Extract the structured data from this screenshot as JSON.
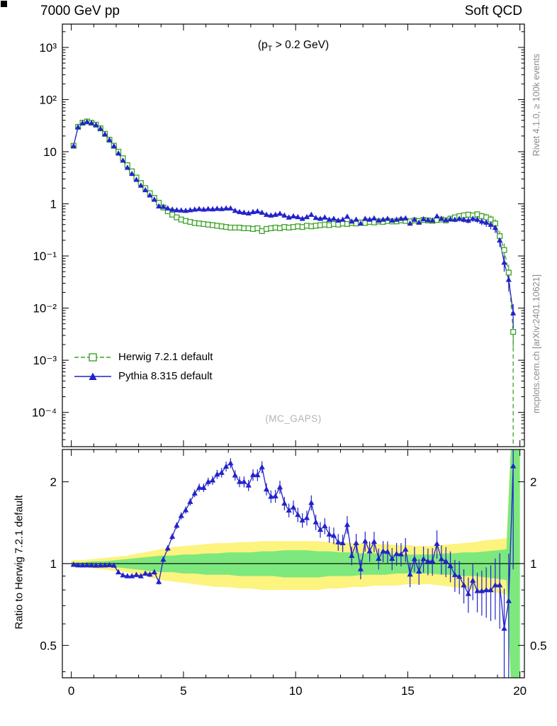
{
  "header": {
    "title_left": "7000 GeV pp",
    "title_right": "Soft QCD"
  },
  "annotation": {
    "prefix": "(p",
    "sub": "T",
    "suffix": " > 0.2 GeV)"
  },
  "watermark": "(MC_GAPS)",
  "captions": {
    "right_top": "Rivet 4.1.0, ≥ 100k events",
    "right_bottom": "mcplots.cern.ch [arXiv:2401.10621]"
  },
  "ratio_axis_label": "Ratio to Herwig 7.2.1 default",
  "legend": [
    {
      "label": "Herwig 7.2.1 default",
      "marker": "open-square",
      "line": "dashed",
      "color_key": "herwig"
    },
    {
      "label": "Pythia 8.315 default",
      "marker": "filled-triangle",
      "line": "solid",
      "color_key": "pythia"
    }
  ],
  "colors": {
    "herwig": "#3da228",
    "pythia": "#2222cc",
    "band_yellow": "#fdf37f",
    "band_green": "#7de87d",
    "frame": "#000000",
    "watermark_gray": "#b4b4b4",
    "caption_gray": "#8a8a8a"
  },
  "chart_data": {
    "type": "line",
    "xlabel": "",
    "x": [
      0.1,
      0.3,
      0.5,
      0.7,
      0.9,
      1.1,
      1.3,
      1.5,
      1.7,
      1.9,
      2.1,
      2.3,
      2.5,
      2.7,
      2.9,
      3.1,
      3.3,
      3.5,
      3.7,
      3.9,
      4.1,
      4.3,
      4.5,
      4.7,
      4.9,
      5.1,
      5.3,
      5.5,
      5.7,
      5.9,
      6.1,
      6.3,
      6.5,
      6.7,
      6.9,
      7.1,
      7.3,
      7.5,
      7.7,
      7.9,
      8.1,
      8.3,
      8.5,
      8.7,
      8.9,
      9.1,
      9.3,
      9.5,
      9.7,
      9.9,
      10.1,
      10.3,
      10.5,
      10.7,
      10.9,
      11.1,
      11.3,
      11.5,
      11.7,
      11.9,
      12.1,
      12.3,
      12.5,
      12.7,
      12.9,
      13.1,
      13.3,
      13.5,
      13.7,
      13.9,
      14.1,
      14.3,
      14.5,
      14.7,
      14.9,
      15.1,
      15.3,
      15.5,
      15.7,
      15.9,
      16.1,
      16.3,
      16.5,
      16.7,
      16.9,
      17.1,
      17.3,
      17.5,
      17.7,
      17.9,
      18.1,
      18.3,
      18.5,
      18.7,
      18.9,
      19.1,
      19.3,
      19.5,
      19.7,
      19.9
    ],
    "series": [
      {
        "name": "Herwig 7.2.1 default",
        "tail_drop_x": 19.7,
        "values": [
          13,
          30,
          36,
          38,
          36,
          33,
          28,
          22,
          17,
          13,
          10,
          7.5,
          5.5,
          4.2,
          3.2,
          2.5,
          2.0,
          1.6,
          1.3,
          1.05,
          0.85,
          0.72,
          0.62,
          0.55,
          0.5,
          0.47,
          0.45,
          0.43,
          0.42,
          0.41,
          0.4,
          0.39,
          0.38,
          0.37,
          0.36,
          0.35,
          0.35,
          0.35,
          0.34,
          0.34,
          0.33,
          0.34,
          0.3,
          0.33,
          0.34,
          0.35,
          0.34,
          0.36,
          0.35,
          0.36,
          0.37,
          0.36,
          0.38,
          0.37,
          0.38,
          0.39,
          0.4,
          0.39,
          0.41,
          0.4,
          0.42,
          0.41,
          0.43,
          0.42,
          0.44,
          0.43,
          0.45,
          0.44,
          0.46,
          0.45,
          0.47,
          0.46,
          0.46,
          0.48,
          0.47,
          0.46,
          0.48,
          0.47,
          0.49,
          0.48,
          0.47,
          0.49,
          0.5,
          0.48,
          0.52,
          0.55,
          0.58,
          0.6,
          0.62,
          0.6,
          0.63,
          0.58,
          0.55,
          0.5,
          0.42,
          0.24,
          0.13,
          0.048,
          0.0035,
          null
        ]
      },
      {
        "name": "Pythia 8.315 default",
        "tail_drop_x": null,
        "values": [
          12.9,
          29.6,
          35.5,
          37.5,
          35.5,
          32.5,
          27.6,
          21.7,
          16.8,
          12.8,
          9.3,
          6.8,
          4.95,
          3.78,
          2.91,
          2.25,
          1.84,
          1.46,
          1.21,
          0.9,
          0.88,
          0.82,
          0.78,
          0.76,
          0.75,
          0.74,
          0.76,
          0.78,
          0.8,
          0.78,
          0.8,
          0.79,
          0.81,
          0.8,
          0.82,
          0.82,
          0.74,
          0.7,
          0.68,
          0.66,
          0.7,
          0.72,
          0.68,
          0.62,
          0.6,
          0.62,
          0.65,
          0.6,
          0.55,
          0.58,
          0.56,
          0.52,
          0.56,
          0.62,
          0.54,
          0.52,
          0.55,
          0.5,
          0.52,
          0.48,
          0.5,
          0.57,
          0.46,
          0.5,
          0.42,
          0.52,
          0.5,
          0.53,
          0.48,
          0.5,
          0.52,
          0.48,
          0.5,
          0.52,
          0.53,
          0.42,
          0.5,
          0.44,
          0.51,
          0.49,
          0.48,
          0.58,
          0.52,
          0.49,
          0.51,
          0.5,
          0.52,
          0.5,
          0.48,
          0.52,
          0.5,
          0.46,
          0.44,
          0.4,
          0.35,
          0.2,
          0.075,
          0.035,
          0.008,
          null
        ]
      }
    ],
    "ratio": {
      "reference": "Herwig 7.2.1 default",
      "label": "Ratio to Herwig 7.2.1 default",
      "definition": "Pythia / Herwig"
    },
    "rel_err_vs_x": [
      0.015,
      0.012,
      0.012,
      0.015,
      0.02,
      0.025,
      0.03,
      0.035,
      0.04,
      0.045,
      0.05,
      0.055,
      0.06,
      0.07,
      0.075,
      0.085,
      0.095,
      0.11,
      0.13,
      0.22,
      0.6
    ],
    "bands": {
      "x": [
        0,
        0.5,
        1,
        1.5,
        2,
        2.5,
        3,
        3.5,
        4,
        4.5,
        5,
        5.5,
        6,
        6.5,
        7,
        7.5,
        8,
        8.5,
        9,
        9.5,
        10,
        10.5,
        11,
        11.5,
        12,
        12.5,
        13,
        13.5,
        14,
        14.5,
        15,
        15.5,
        16,
        16.5,
        17,
        17.5,
        18,
        18.5,
        19,
        19.4,
        19.6,
        20
      ],
      "yellow_lo": [
        0.97,
        0.97,
        0.96,
        0.95,
        0.94,
        0.93,
        0.91,
        0.89,
        0.87,
        0.86,
        0.85,
        0.84,
        0.83,
        0.82,
        0.82,
        0.81,
        0.81,
        0.8,
        0.8,
        0.8,
        0.8,
        0.8,
        0.8,
        0.81,
        0.81,
        0.82,
        0.82,
        0.83,
        0.83,
        0.83,
        0.84,
        0.84,
        0.84,
        0.83,
        0.82,
        0.81,
        0.8,
        0.79,
        0.78,
        0.77,
        0.36,
        0.36
      ],
      "yellow_hi": [
        1.03,
        1.03,
        1.04,
        1.05,
        1.06,
        1.07,
        1.09,
        1.11,
        1.13,
        1.15,
        1.16,
        1.17,
        1.18,
        1.19,
        1.19,
        1.2,
        1.2,
        1.21,
        1.21,
        1.21,
        1.21,
        1.21,
        1.21,
        1.2,
        1.2,
        1.19,
        1.19,
        1.18,
        1.18,
        1.17,
        1.17,
        1.16,
        1.16,
        1.17,
        1.18,
        1.19,
        1.2,
        1.22,
        1.23,
        1.24,
        2.7,
        2.7
      ],
      "green_lo": [
        0.99,
        0.99,
        0.98,
        0.98,
        0.97,
        0.96,
        0.95,
        0.94,
        0.93,
        0.93,
        0.92,
        0.92,
        0.91,
        0.91,
        0.91,
        0.9,
        0.9,
        0.9,
        0.9,
        0.89,
        0.89,
        0.89,
        0.89,
        0.9,
        0.9,
        0.9,
        0.91,
        0.91,
        0.91,
        0.92,
        0.92,
        0.92,
        0.92,
        0.91,
        0.91,
        0.9,
        0.9,
        0.89,
        0.88,
        0.87,
        0.36,
        0.36
      ],
      "green_hi": [
        1.01,
        1.01,
        1.02,
        1.02,
        1.03,
        1.04,
        1.05,
        1.06,
        1.07,
        1.07,
        1.08,
        1.08,
        1.09,
        1.09,
        1.1,
        1.1,
        1.1,
        1.11,
        1.11,
        1.12,
        1.12,
        1.12,
        1.11,
        1.11,
        1.1,
        1.1,
        1.09,
        1.09,
        1.09,
        1.08,
        1.08,
        1.08,
        1.08,
        1.09,
        1.09,
        1.1,
        1.1,
        1.11,
        1.12,
        1.13,
        2.7,
        2.7
      ]
    },
    "axes": {
      "x": {
        "min": -0.4,
        "max": 20.2,
        "major_ticks": [
          0,
          5,
          10,
          15,
          20
        ],
        "tick_labels": [
          "0",
          "5",
          "10",
          "15",
          "20"
        ],
        "minor_step": 1
      },
      "y_main": {
        "scale": "log",
        "min": 2.2e-05,
        "max": 2800,
        "tick_values": [
          1000,
          100,
          10,
          1,
          0.1,
          0.01,
          0.001,
          0.0001
        ],
        "tick_labels": [
          "10³",
          "10²",
          "10",
          "1",
          "10⁻¹",
          "10⁻²",
          "10⁻³",
          "10⁻⁴"
        ]
      },
      "y_ratio": {
        "scale": "log",
        "min": 0.38,
        "max": 2.63,
        "tick_values": [
          2,
          1,
          0.5
        ],
        "tick_labels": [
          "2",
          "1",
          "0.5"
        ],
        "minor_ticks": [
          0.4,
          0.6,
          0.7,
          0.8,
          0.9
        ]
      }
    }
  }
}
